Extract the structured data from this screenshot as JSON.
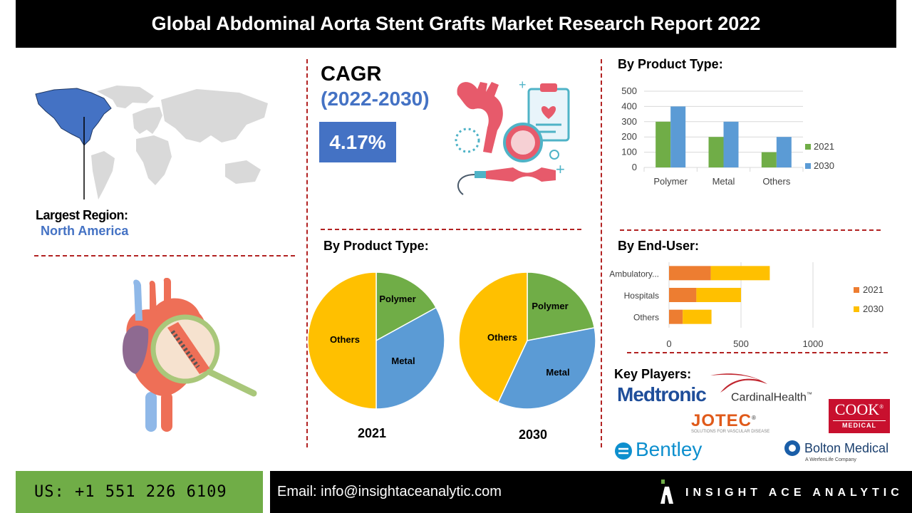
{
  "title": "Global Abdominal Aorta Stent Grafts Market Research Report 2022",
  "largest_region": {
    "label": "Largest Region:",
    "value": "North America"
  },
  "cagr": {
    "label": "CAGR",
    "period": "(2022-2030)",
    "value": "4.17%"
  },
  "section_titles": {
    "product_bar": "By Product Type:",
    "product_pie": "By Product Type:",
    "end_user": "By End-User:",
    "key_players": "Key Players:"
  },
  "key_players": {
    "medtronic": "Medtronic",
    "cardinal": "CardinalHealth",
    "cardinal_tm": "™",
    "jotec": "JOTEC",
    "jotec_reg": "®",
    "jotec_sub": "SOLUTIONS FOR VASCULAR DISEASE",
    "cook": "COOK",
    "cook_reg": "®",
    "cook_sub": "MEDICAL",
    "bentley": "Bentley",
    "bolton": "Bolton Medical",
    "bolton_sub": "A WerfenLife Company"
  },
  "footer": {
    "phone": "US: +1 551 226 6109",
    "email": "Email: info@insightaceanalytic.com",
    "brand": "INSIGHT ACE ANALYTIC"
  },
  "colors": {
    "c2021": "#70ad47",
    "c2030": "#5b9bd5",
    "orange": "#ed7d31",
    "yellow": "#ffc000",
    "blue": "#4472c4"
  },
  "chart_data": [
    {
      "type": "bar",
      "categories": [
        "Polymer",
        "Metal",
        "Others"
      ],
      "series": [
        {
          "name": "2021",
          "values": [
            300,
            200,
            100
          ]
        },
        {
          "name": "2030",
          "values": [
            400,
            300,
            200
          ]
        }
      ],
      "yticks": [
        "500",
        "400",
        "300",
        "200",
        "100",
        "0"
      ],
      "ylim": [
        0,
        500
      ],
      "grid": true,
      "legend": "right"
    },
    {
      "type": "pie",
      "year": "2021",
      "slices": [
        {
          "label": "Polymer",
          "value": 17
        },
        {
          "label": "Metal",
          "value": 33
        },
        {
          "label": "Others",
          "value": 50
        }
      ]
    },
    {
      "type": "pie",
      "year": "2030",
      "slices": [
        {
          "label": "Polymer",
          "value": 22
        },
        {
          "label": "Metal",
          "value": 35
        },
        {
          "label": "Others",
          "value": 43
        }
      ]
    },
    {
      "type": "bar",
      "orientation": "horizontal",
      "stacked": true,
      "categories": [
        "Ambulatory...",
        "Hospitals",
        "Others"
      ],
      "series": [
        {
          "name": "2021",
          "values": [
            290,
            190,
            95
          ]
        },
        {
          "name": "2030",
          "values": [
            410,
            310,
            200
          ]
        }
      ],
      "xticks": [
        "0",
        "500",
        "1000"
      ],
      "xlim": [
        0,
        1000
      ],
      "grid": true,
      "legend": "right"
    }
  ]
}
